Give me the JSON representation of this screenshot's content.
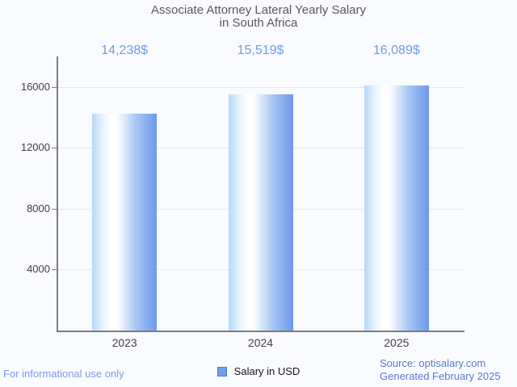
{
  "chart_data": {
    "type": "bar",
    "title": "Associate Attorney Lateral Yearly Salary in South Africa",
    "title_line1": "Associate Attorney Lateral Yearly Salary",
    "title_line2": "in South Africa",
    "categories": [
      "2023",
      "2024",
      "2025"
    ],
    "values": [
      14238,
      15519,
      16089
    ],
    "value_labels": [
      "14,238$",
      "15,519$",
      "16,089$"
    ],
    "yticks": [
      4000,
      8000,
      12000,
      16000
    ],
    "ylim": [
      0,
      18000
    ],
    "grid": true,
    "legend": {
      "label": "Salary in USD",
      "position": "bottom"
    },
    "xlabel": "",
    "ylabel": ""
  },
  "footer": {
    "left": "For informational use only",
    "source": "Source: optisalary.com",
    "generated": "Generated February 2025"
  },
  "colors": {
    "background": "#fafbfe",
    "title": "#58595b",
    "value_label": "#6e9ced",
    "axis": "#7b7d80",
    "gridline": "#e8e9ed",
    "tick_label": "#414141",
    "bar_gradient_left": "#b3d9fb",
    "bar_gradient_mid": "#ffffff",
    "bar_gradient_right": "#6d99ea",
    "legend_swatch_fill": "#6d9eeb",
    "legend_swatch_border": "#4b7bd5",
    "footer_left": "#7b9bee",
    "footer_right": "#5a7ace"
  }
}
